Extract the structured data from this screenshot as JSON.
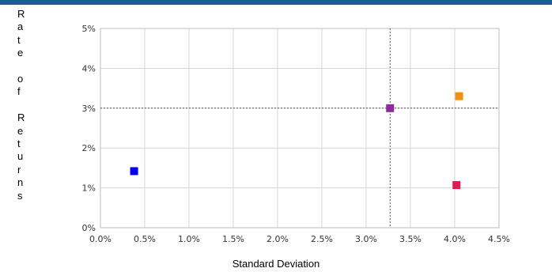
{
  "chart_data": {
    "type": "scatter",
    "xlabel": "Standard Deviation",
    "ylabel": "Rate of Returns",
    "xlim": [
      0.0,
      4.5
    ],
    "ylim": [
      0,
      5
    ],
    "x_ticks": [
      "0.0%",
      "0.5%",
      "1.0%",
      "1.5%",
      "2.0%",
      "2.5%",
      "3.0%",
      "3.5%",
      "4.0%",
      "4.5%"
    ],
    "y_ticks": [
      "0%",
      "1%",
      "2%",
      "3%",
      "4%",
      "5%"
    ],
    "grid": true,
    "reference_lines": {
      "x": 3.27,
      "y": 3.0
    },
    "points": [
      {
        "x": 0.38,
        "y": 1.42,
        "color": "#0000ee"
      },
      {
        "x": 3.27,
        "y": 3.0,
        "color": "#8e2a9e"
      },
      {
        "x": 4.05,
        "y": 3.3,
        "color": "#f29111"
      },
      {
        "x": 4.02,
        "y": 1.07,
        "color": "#e01a4f"
      }
    ]
  }
}
